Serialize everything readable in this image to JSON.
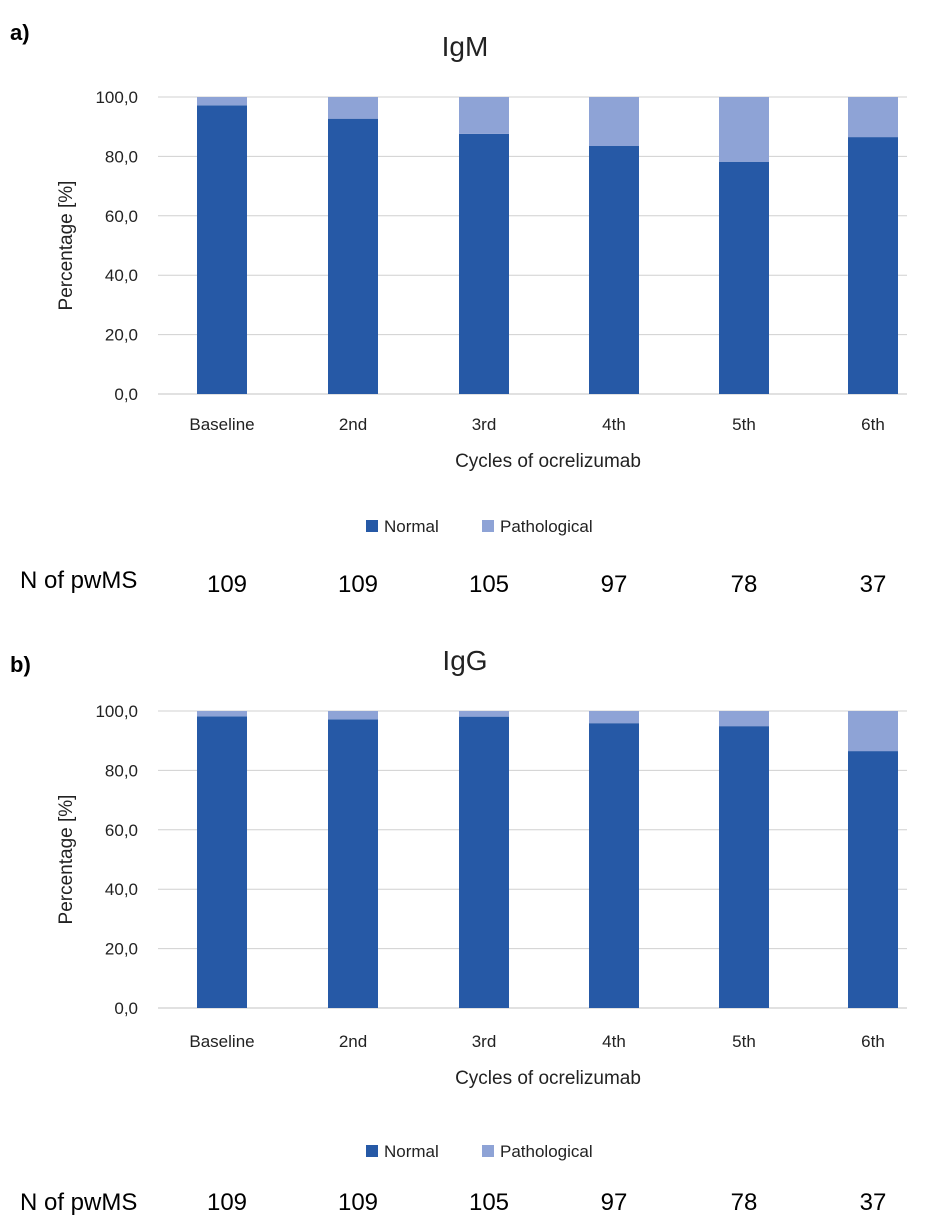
{
  "colors": {
    "normal": "#2659a6",
    "pathological": "#8ea3d6"
  },
  "n_row_label": "N of pwMS",
  "n_values": [
    "109",
    "109",
    "105",
    "97",
    "78",
    "37"
  ],
  "chart_data": [
    {
      "panel": "a)",
      "type": "bar",
      "stacked": true,
      "title": "IgM",
      "xlabel": "Cycles of ocrelizumab",
      "ylabel": "Percentage [%]",
      "ylim": [
        0,
        100
      ],
      "yticks": [
        "0,0",
        "20,0",
        "40,0",
        "60,0",
        "80,0",
        "100,0"
      ],
      "grid": true,
      "legend_position": "bottom",
      "categories": [
        "Baseline",
        "2nd",
        "3rd",
        "4th",
        "5th",
        "6th"
      ],
      "series": [
        {
          "name": "Normal",
          "values": [
            97.2,
            92.7,
            87.6,
            83.5,
            78.2,
            86.5
          ]
        },
        {
          "name": "Pathological",
          "values": [
            2.8,
            7.3,
            12.4,
            16.5,
            21.8,
            13.5
          ]
        }
      ]
    },
    {
      "panel": "b)",
      "type": "bar",
      "stacked": true,
      "title": "IgG",
      "xlabel": "Cycles of ocrelizumab",
      "ylabel": "Percentage [%]",
      "ylim": [
        0,
        100
      ],
      "yticks": [
        "0,0",
        "20,0",
        "40,0",
        "60,0",
        "80,0",
        "100,0"
      ],
      "grid": true,
      "legend_position": "bottom",
      "categories": [
        "Baseline",
        "2nd",
        "3rd",
        "4th",
        "5th",
        "6th"
      ],
      "series": [
        {
          "name": "Normal",
          "values": [
            98.2,
            97.2,
            98.1,
            95.9,
            94.9,
            86.5
          ]
        },
        {
          "name": "Pathological",
          "values": [
            1.8,
            2.8,
            1.9,
            4.1,
            5.1,
            13.5
          ]
        }
      ]
    }
  ]
}
